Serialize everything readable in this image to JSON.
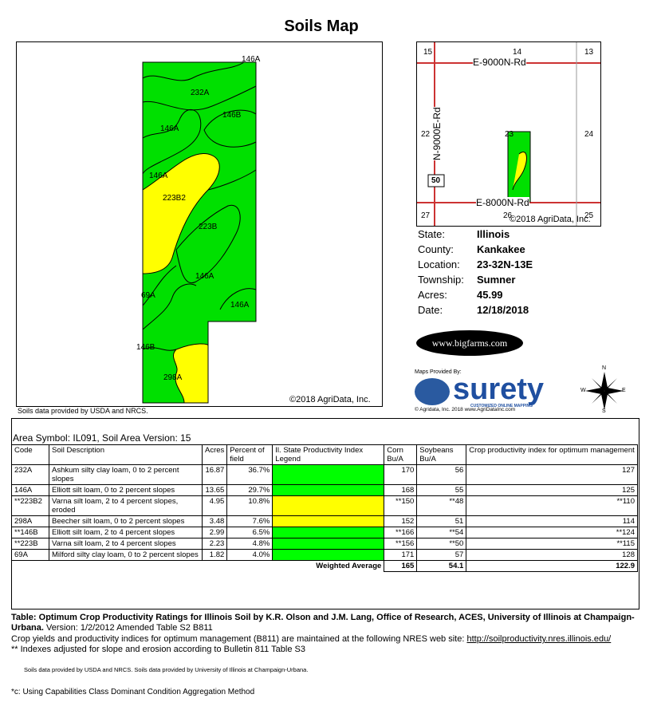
{
  "title": "Soils Map",
  "map": {
    "labels": [
      "146A",
      "232A",
      "146B",
      "146A",
      "146A",
      "223B2",
      "223B",
      "146A",
      "69A",
      "146A",
      "146B",
      "298A"
    ],
    "copyright": "©2018 AgriData, Inc.",
    "source_note": "Soils data provided by USDA and NRCS."
  },
  "locator": {
    "roads": [
      "E-9000N-Rd",
      "N-9000E-Rd",
      "E-8000N-Rd"
    ],
    "sections": [
      "15",
      "14",
      "13",
      "22",
      "23",
      "24",
      "27",
      "26",
      "25"
    ],
    "route": "50",
    "copyright": "©2018 AgriData, Inc."
  },
  "info": [
    {
      "k": "State:",
      "v": "Illinois"
    },
    {
      "k": "County:",
      "v": "Kankakee"
    },
    {
      "k": "Location:",
      "v": "23-32N-13E"
    },
    {
      "k": "Township:",
      "v": "Sumner"
    },
    {
      "k": "Acres:",
      "v": "45.99"
    },
    {
      "k": "Date:",
      "v": "12/18/2018"
    }
  ],
  "bigfarms_logo": "www.bigfarms.com",
  "surety": {
    "provided_by": "Maps Provided By:",
    "brand": "surety",
    "tagline": "CUSTOMIZED ONLINE MAPPING",
    "footer": "© Agridata, Inc. 2018        www.AgriDataInc.com"
  },
  "compass": {
    "n": "N",
    "s": "S",
    "e": "E",
    "w": "W"
  },
  "table": {
    "area_symbol": "Area Symbol: IL091, Soil Area Version: 15",
    "headers": [
      "Code",
      "Soil Description",
      "Acres",
      "Percent of field",
      "Il. State Productivity Index Legend",
      "Corn Bu/A",
      "Soybeans Bu/A",
      "Crop productivity index for optimum management"
    ],
    "rows": [
      {
        "code": "232A",
        "desc": "Ashkum silty clay loam, 0 to 2 percent slopes",
        "acres": "16.87",
        "pct": "36.7%",
        "legend": "green",
        "corn": "170",
        "soy": "56",
        "cpi": "127"
      },
      {
        "code": "146A",
        "desc": "Elliott silt loam, 0 to 2 percent slopes",
        "acres": "13.65",
        "pct": "29.7%",
        "legend": "green",
        "corn": "168",
        "soy": "55",
        "cpi": "125"
      },
      {
        "code": "**223B2",
        "desc": "Varna silt loam, 2 to 4 percent slopes, eroded",
        "acres": "4.95",
        "pct": "10.8%",
        "legend": "yellow",
        "corn": "**150",
        "soy": "**48",
        "cpi": "**110"
      },
      {
        "code": "298A",
        "desc": "Beecher silt loam, 0 to 2 percent slopes",
        "acres": "3.48",
        "pct": "7.6%",
        "legend": "yellow",
        "corn": "152",
        "soy": "51",
        "cpi": "114"
      },
      {
        "code": "**146B",
        "desc": "Elliott silt loam, 2 to 4 percent slopes",
        "acres": "2.99",
        "pct": "6.5%",
        "legend": "green",
        "corn": "**166",
        "soy": "**54",
        "cpi": "**124"
      },
      {
        "code": "**223B",
        "desc": "Varna silt loam, 2 to 4 percent slopes",
        "acres": "2.23",
        "pct": "4.8%",
        "legend": "green",
        "corn": "**156",
        "soy": "**50",
        "cpi": "**115"
      },
      {
        "code": "69A",
        "desc": "Milford silty clay loam, 0 to 2 percent slopes",
        "acres": "1.82",
        "pct": "4.0%",
        "legend": "green",
        "corn": "171",
        "soy": "57",
        "cpi": "128"
      }
    ],
    "weighted_label": "Weighted Average",
    "weighted_corn": "165",
    "weighted_soy": "54.1",
    "weighted_cpi": "122.9"
  },
  "footnotes": {
    "line1_bold": "Table: Optimum Crop Productivity Ratings for Illinois Soil by K.R. Olson and J.M. Lang, Office of Research, ACES, University of Illinois at Champaign-Urbana.",
    "line1_rest": " Version: 1/2/2012 Amended Table S2 B811",
    "line2": "Crop yields and productivity indices for optimum management (B811) are maintained at the following NRES web site: ",
    "line2_link": "http://soilproductivity.nres.illinois.edu/",
    "line3": "** Indexes adjusted for slope and erosion according to Bulletin 811 Table S3",
    "line4": "Soils data provided by USDA and NRCS. Soils data provided by University of Illinois at Champaign-Urbana.",
    "line5": "*c:  Using Capabilities Class Dominant Condition Aggregation Method"
  }
}
